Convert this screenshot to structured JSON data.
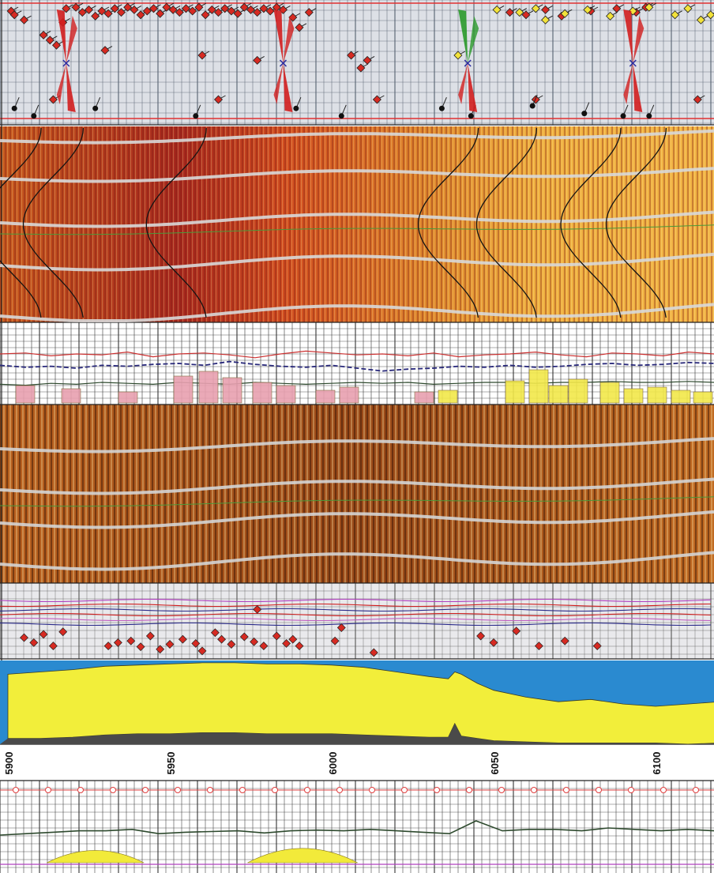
{
  "chart_data": {
    "type": "well-log-composite",
    "depth_axis": {
      "orientation": "horizontal",
      "range": [
        5900,
        6120
      ],
      "tick_labels": [
        "5900",
        "5950",
        "6000",
        "6050",
        "6100"
      ],
      "tick_values": [
        5900,
        5950,
        6000,
        6050,
        6100
      ]
    },
    "tracks": [
      {
        "name": "dip_tadpoles",
        "kind": "scatter",
        "grid": true,
        "tadpoles_red": [
          [
            5901,
            5
          ],
          [
            5902,
            8
          ],
          [
            5905,
            12
          ],
          [
            5911,
            24
          ],
          [
            5913,
            28
          ],
          [
            5915,
            32
          ],
          [
            5917,
            14
          ],
          [
            5918,
            3
          ],
          [
            5921,
            2
          ],
          [
            5923,
            6
          ],
          [
            5925,
            4
          ],
          [
            5927,
            9
          ],
          [
            5929,
            5
          ],
          [
            5931,
            7
          ],
          [
            5933,
            3
          ],
          [
            5935,
            6
          ],
          [
            5937,
            2
          ],
          [
            5939,
            4
          ],
          [
            5941,
            8
          ],
          [
            5943,
            5
          ],
          [
            5945,
            3
          ],
          [
            5947,
            7
          ],
          [
            5949,
            2
          ],
          [
            5951,
            4
          ],
          [
            5953,
            6
          ],
          [
            5955,
            3
          ],
          [
            5957,
            5
          ],
          [
            5959,
            2
          ],
          [
            5961,
            8
          ],
          [
            5963,
            4
          ],
          [
            5965,
            6
          ],
          [
            5967,
            3
          ],
          [
            5969,
            5
          ],
          [
            5971,
            7
          ],
          [
            5973,
            2
          ],
          [
            5975,
            4
          ],
          [
            5977,
            6
          ],
          [
            5979,
            3
          ],
          [
            5981,
            5
          ],
          [
            5983,
            2
          ],
          [
            5985,
            4
          ],
          [
            5988,
            10
          ],
          [
            5990,
            18
          ],
          [
            5993,
            6
          ],
          [
            6006,
            40
          ],
          [
            6009,
            50
          ],
          [
            6011,
            44
          ],
          [
            6055,
            6
          ],
          [
            6060,
            8
          ],
          [
            6066,
            4
          ],
          [
            6071,
            9
          ],
          [
            6080,
            5
          ],
          [
            6088,
            3
          ],
          [
            6094,
            6
          ],
          [
            6097,
            2
          ],
          [
            5914,
            75
          ],
          [
            5965,
            75
          ],
          [
            6014,
            75
          ],
          [
            6063,
            75
          ],
          [
            6113,
            75
          ],
          [
            5930,
            36
          ],
          [
            5960,
            40
          ],
          [
            5977,
            44
          ]
        ],
        "tadpoles_yellow": [
          [
            6039,
            40
          ],
          [
            6051,
            4
          ],
          [
            6058,
            6
          ],
          [
            6063,
            3
          ],
          [
            6066,
            12
          ],
          [
            6072,
            7
          ],
          [
            6079,
            4
          ],
          [
            6086,
            9
          ],
          [
            6093,
            5
          ],
          [
            6098,
            2
          ],
          [
            6106,
            8
          ],
          [
            6110,
            3
          ],
          [
            6114,
            12
          ],
          [
            6117,
            8
          ]
        ],
        "tadpoles_black": [
          [
            5902,
            82
          ],
          [
            5908,
            88
          ],
          [
            5927,
            82
          ],
          [
            5958,
            88
          ],
          [
            5989,
            82
          ],
          [
            6003,
            88
          ],
          [
            6034,
            82
          ],
          [
            6043,
            88
          ],
          [
            6062,
            80
          ],
          [
            6078,
            86
          ],
          [
            6090,
            88
          ],
          [
            6098,
            88
          ]
        ],
        "rose_diagrams_depths": [
          5918,
          5985,
          6042,
          6093
        ]
      },
      {
        "name": "borehole_image_static",
        "kind": "image",
        "sinusoids_black": [
          5901,
          5914,
          5952,
          6036,
          6054,
          6080,
          6094
        ]
      },
      {
        "name": "curves_mid",
        "kind": "line+fill",
        "curves": [
          {
            "color": "#cc3030",
            "values": [
              30,
              29,
              32,
              30,
              31,
              28,
              33,
              30,
              29,
              31,
              34,
              30,
              27,
              29,
              31,
              30,
              32,
              29,
              33,
              31,
              30,
              28,
              31,
              33,
              29,
              30,
              32,
              28,
              30
            ]
          },
          {
            "color": "#28287a",
            "values": [
              42,
              44,
              43,
              45,
              42,
              43,
              41,
              40,
              42,
              38,
              41,
              43,
              44,
              42,
              45,
              48,
              46,
              45,
              43,
              44,
              42,
              44,
              43,
              41,
              40,
              42,
              41,
              39,
              40
            ]
          },
          {
            "color": "#2e4a2e",
            "values": [
              62,
              63,
              61,
              62,
              60,
              61,
              62,
              60,
              61,
              62,
              60,
              61,
              62,
              61,
              60,
              61,
              60,
              62,
              61,
              60,
              60,
              61,
              60,
              60,
              59,
              60,
              60,
              59,
              60
            ]
          }
        ]
      },
      {
        "name": "borehole_image_dynamic",
        "kind": "image"
      },
      {
        "name": "curves_lower",
        "kind": "line+scatter",
        "points_red": [
          [
            5905,
            62
          ],
          [
            5908,
            68
          ],
          [
            5911,
            58
          ],
          [
            5914,
            72
          ],
          [
            5917,
            55
          ],
          [
            5931,
            72
          ],
          [
            5934,
            68
          ],
          [
            5938,
            66
          ],
          [
            5941,
            73
          ],
          [
            5944,
            60
          ],
          [
            5947,
            76
          ],
          [
            5950,
            70
          ],
          [
            5954,
            64
          ],
          [
            5958,
            69
          ],
          [
            5960,
            78
          ],
          [
            5964,
            56
          ],
          [
            5966,
            64
          ],
          [
            5969,
            70
          ],
          [
            5973,
            61
          ],
          [
            5976,
            67
          ],
          [
            5979,
            72
          ],
          [
            5983,
            60
          ],
          [
            5986,
            69
          ],
          [
            5988,
            64
          ],
          [
            5990,
            72
          ],
          [
            6001,
            66
          ],
          [
            6013,
            80
          ],
          [
            6046,
            60
          ],
          [
            6050,
            68
          ],
          [
            6057,
            54
          ],
          [
            6064,
            72
          ],
          [
            6072,
            66
          ],
          [
            6082,
            72
          ],
          [
            5977,
            28
          ],
          [
            6003,
            50
          ]
        ]
      },
      {
        "name": "lithology_fill",
        "kind": "area",
        "x": [
          5900,
          5910,
          5920,
          5930,
          5940,
          5950,
          5960,
          5970,
          5980,
          5990,
          6000,
          6010,
          6020,
          6030,
          6036,
          6038,
          6040,
          6045,
          6050,
          6060,
          6070,
          6080,
          6090,
          6100,
          6110,
          6120
        ],
        "top_blue": [
          12,
          10,
          8,
          5,
          4,
          3,
          2,
          2,
          3,
          3,
          4,
          6,
          10,
          14,
          16,
          10,
          12,
          20,
          26,
          32,
          36,
          34,
          38,
          40,
          38,
          36
        ],
        "bottom_gray": [
          68,
          68,
          67,
          65,
          64,
          64,
          63,
          63,
          64,
          64,
          64,
          65,
          66,
          67,
          67,
          55,
          66,
          68,
          70,
          71,
          72,
          72,
          72,
          72,
          73,
          72
        ]
      },
      {
        "name": "bottom_curves",
        "kind": "line+area",
        "curve_dark": [
          30,
          28,
          26,
          24,
          24,
          22,
          28,
          26,
          25,
          24,
          27,
          24,
          23,
          24,
          22,
          24,
          26,
          28,
          10,
          24,
          22,
          22,
          24,
          20,
          22,
          24,
          22,
          24
        ],
        "fill_yellow_x": [
          [
            5912,
            5942
          ],
          [
            5974,
            6008
          ]
        ],
        "fill_yellow_peak": [
          12,
          14
        ]
      }
    ]
  }
}
